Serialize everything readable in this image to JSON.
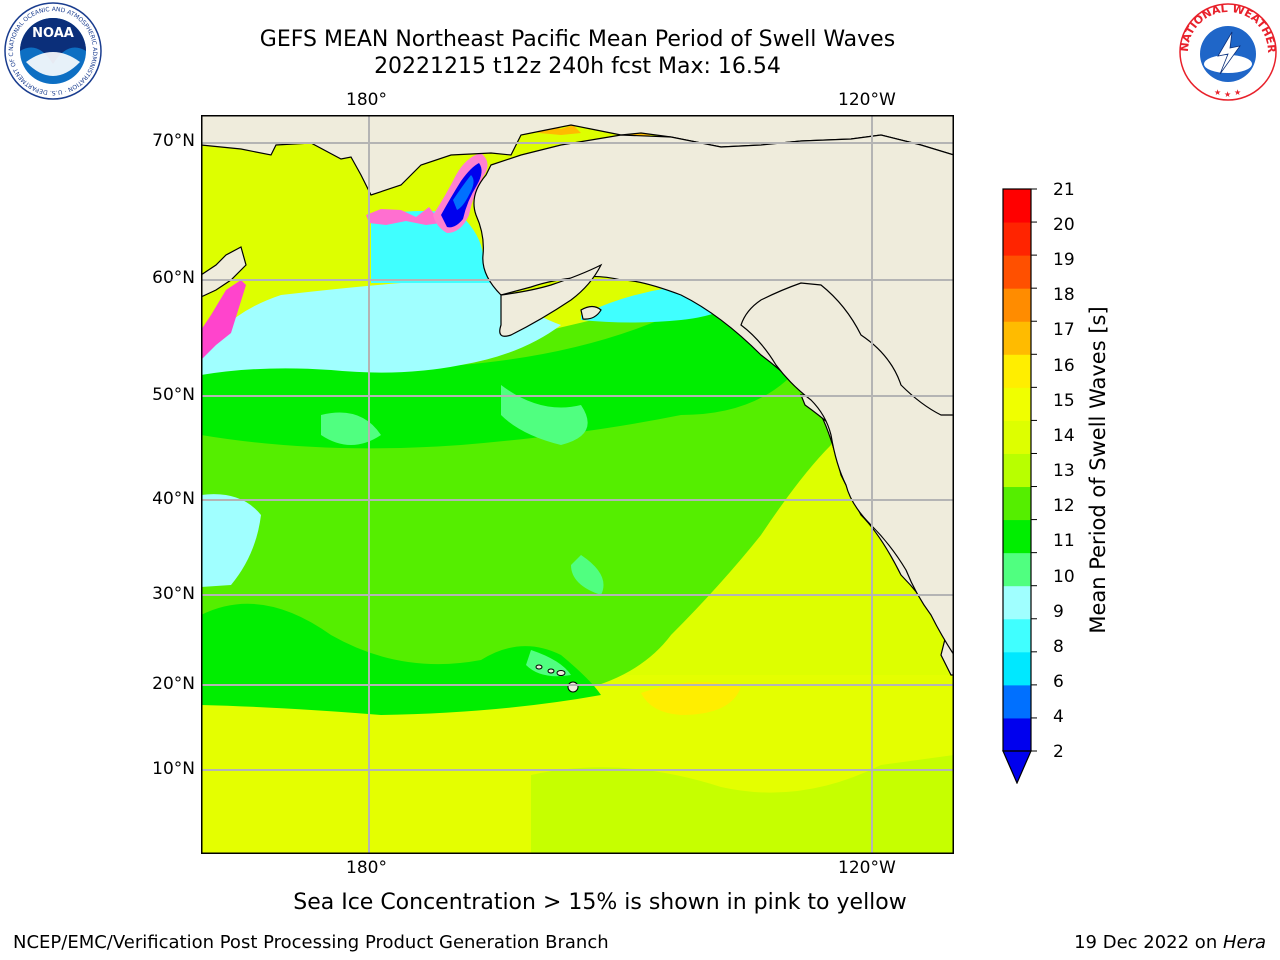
{
  "title": {
    "line1": "GEFS MEAN Northeast Pacific Mean Period of Swell Waves",
    "line2": "20221215 t12z 240h fcst   Max: 16.54"
  },
  "map": {
    "lon_labels": [
      "180°",
      "120°W"
    ],
    "lat_labels": [
      "70°N",
      "60°N",
      "50°N",
      "40°N",
      "30°N",
      "20°N",
      "10°N"
    ],
    "land_color": "#efecdc",
    "grid_color": "#b4b4b4"
  },
  "colorbar": {
    "label": "Mean Period of Swell Waves [s]",
    "ticks": [
      "21",
      "20",
      "19",
      "18",
      "17",
      "16",
      "15",
      "14",
      "13",
      "12",
      "11",
      "10",
      "9",
      "8",
      "6",
      "4",
      "2"
    ],
    "colors": [
      "#0000ee",
      "#0070ff",
      "#00e8ff",
      "#40ffff",
      "#a0ffff",
      "#50ff80",
      "#00ee00",
      "#55ee00",
      "#b8ff00",
      "#ddff00",
      "#f0ff00",
      "#ffee00",
      "#ffbb00",
      "#ff8c00",
      "#ff5000",
      "#ff2400",
      "#ff0000"
    ]
  },
  "footer": {
    "note": "Sea Ice Concentration > 15% is shown in pink to yellow",
    "left": "NCEP/EMC/Verification Post Processing Product Generation Branch",
    "right_date": "19 Dec 2022 on ",
    "right_machine": "Hera"
  },
  "logos": {
    "noaa_text": "NOAA",
    "noaa_ring": "NATIONAL OCEANIC AND ATMOSPHERIC ADMINISTRATION · U.S. DEPARTMENT OF COMMERCE ·",
    "nws_ring": "NATIONAL WEATHER SERVICE"
  }
}
